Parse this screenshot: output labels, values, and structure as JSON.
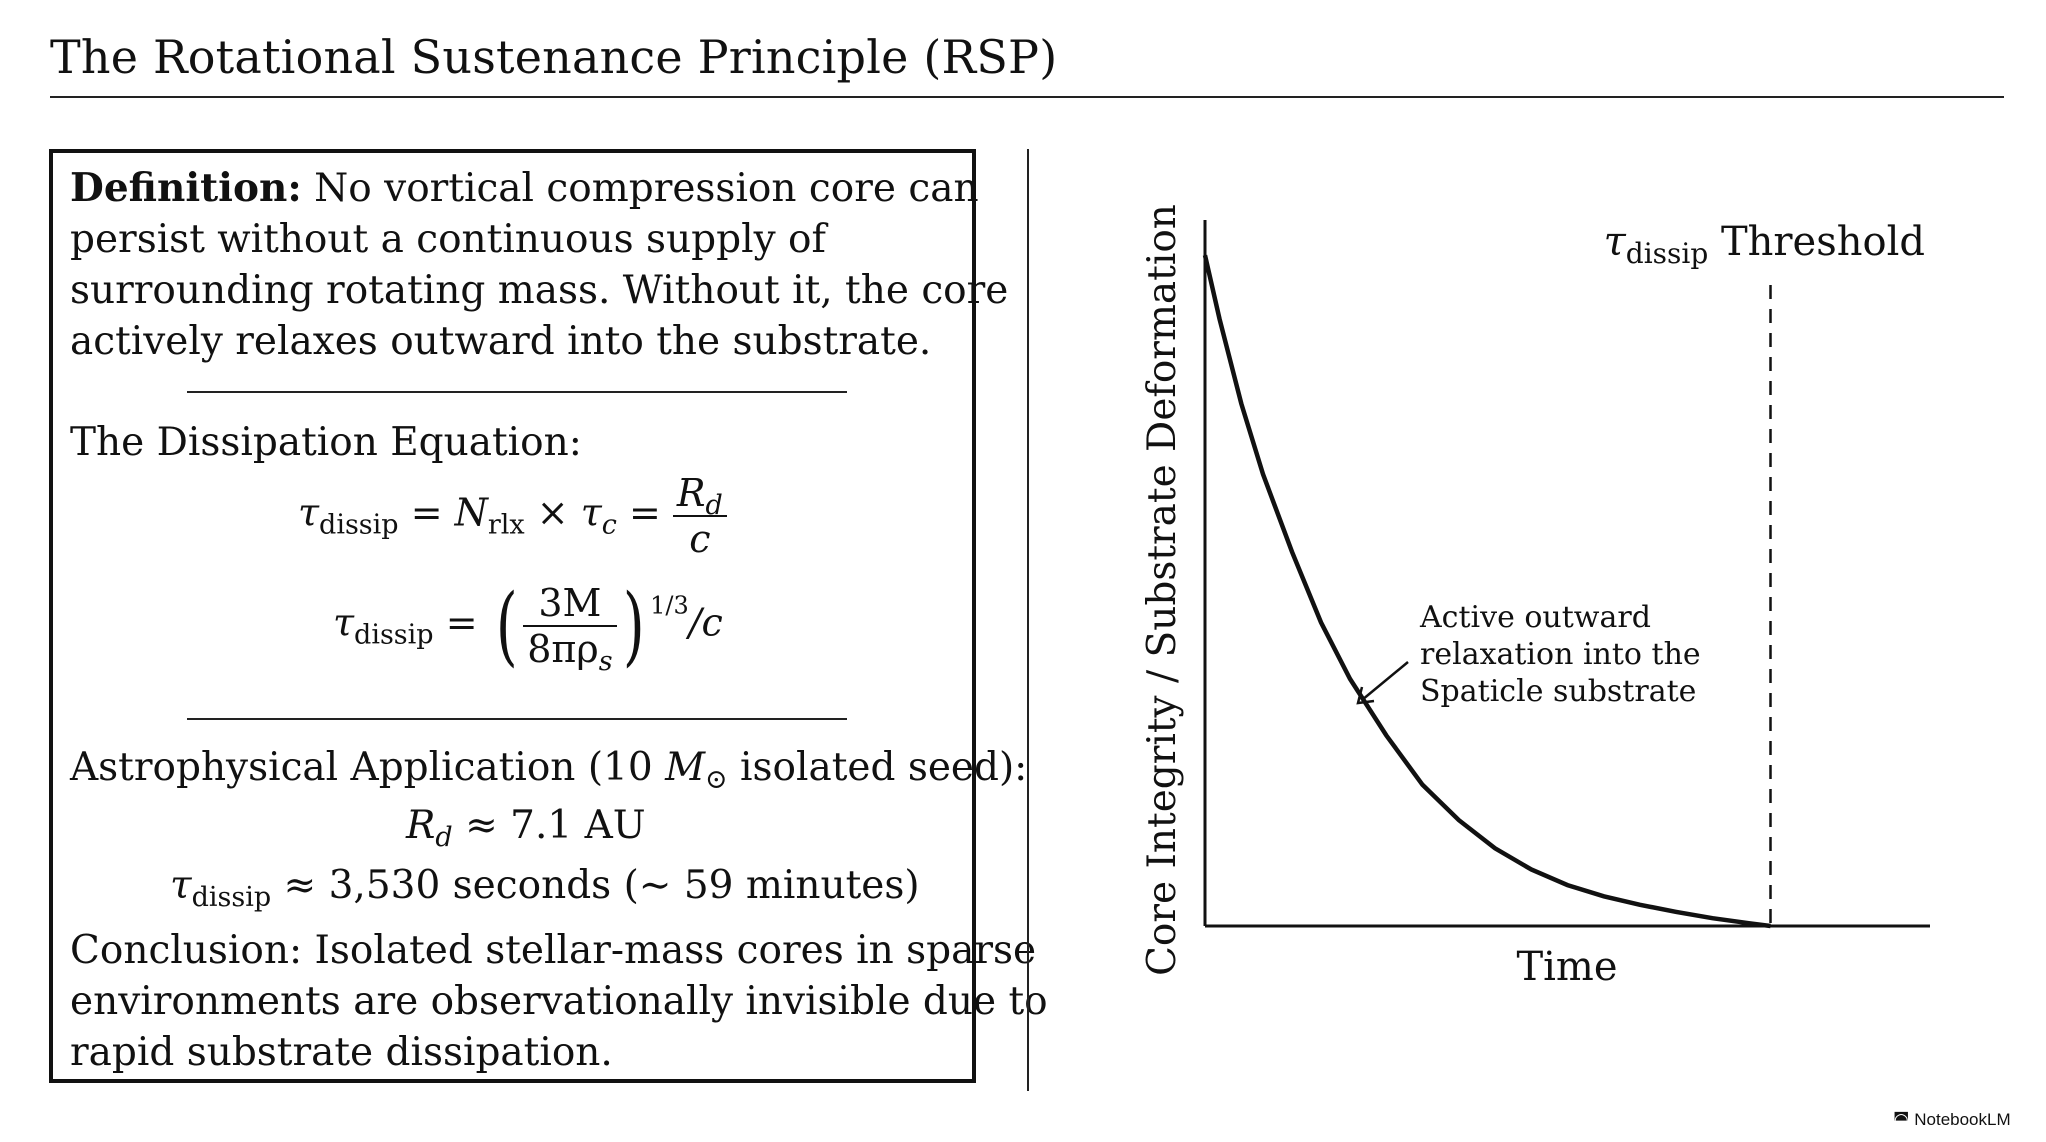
{
  "title": "The Rotational Sustenance Principle (RSP)",
  "definition": {
    "label": "Definition:",
    "lines": [
      " No vortical compression core can",
      "persist without a continuous supply of",
      "surrounding rotating mass.  Without it, the core",
      "actively relaxes outward into the substrate."
    ]
  },
  "equation_section": {
    "heading": "The Dissipation Equation:",
    "eq1": {
      "tau": "τ",
      "sub_dissip": "dissip",
      "eq": "=",
      "N": "N",
      "sub_rlx": "rlx",
      "times": "×",
      "tau_c": "τ",
      "sub_c": "c",
      "num": "R",
      "num_sub": "d",
      "den": "c"
    },
    "eq2": {
      "tau": "τ",
      "sub_dissip": "dissip",
      "eq": "=",
      "left_paren": "(",
      "num": "3M",
      "den": "8πρ",
      "den_sub": "s",
      "right_paren": ")",
      "exponent": "1/3",
      "tail": "/c"
    }
  },
  "application": {
    "heading_pre": "Astrophysical Application (10 ",
    "heading_M": "M",
    "heading_sun": "⊙",
    "heading_post": " isolated seed):",
    "rd_R": "R",
    "rd_sub": "d",
    "rd_value": " ≈ 7.1 AU",
    "tau": "τ",
    "tau_sub": "dissip",
    "tau_value": " ≈ 3,530 seconds (∼ 59 minutes)"
  },
  "conclusion": {
    "lines": [
      "Conclusion:  Isolated stellar-mass cores in sparse",
      "environments are observationally invisible due to",
      "rapid substrate dissipation."
    ]
  },
  "chart_data": {
    "type": "line",
    "xlabel": "Time",
    "ylabel": "Core Integrity / Substrate Deformation",
    "threshold_label_tau": "τ",
    "threshold_label_sub": "dissip",
    "threshold_label_text": "Threshold",
    "annotation": [
      "Active outward",
      "relaxation into the",
      "Spaticle substrate"
    ],
    "xlim": [
      0,
      1
    ],
    "ylim": [
      0,
      1
    ],
    "threshold_x": 0.78,
    "series": [
      {
        "x": [
          0,
          0.02,
          0.05,
          0.08,
          0.12,
          0.16,
          0.2,
          0.25,
          0.3,
          0.35,
          0.4,
          0.45,
          0.5,
          0.55,
          0.6,
          0.65,
          0.7,
          0.75,
          0.78
        ],
        "y": [
          0.95,
          0.86,
          0.74,
          0.64,
          0.53,
          0.43,
          0.35,
          0.27,
          0.2,
          0.15,
          0.11,
          0.08,
          0.058,
          0.042,
          0.03,
          0.02,
          0.011,
          0.004,
          0.0
        ]
      }
    ],
    "grid": false,
    "legend": "none"
  },
  "brand": {
    "icon": "notebooklm-logo-icon",
    "text": "NotebookLM"
  }
}
